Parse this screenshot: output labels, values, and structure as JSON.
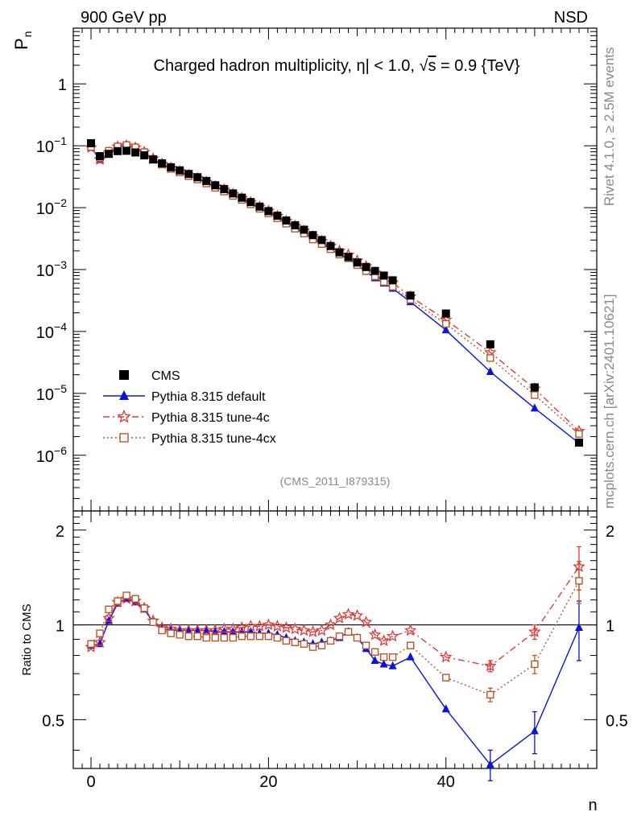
{
  "header": {
    "left": "900 GeV pp",
    "right": "NSD"
  },
  "side_labels": {
    "rivet": "Rivet 4.1.0, ≥ 2.5M events",
    "mcplots": "mcplots.cern.ch [arXiv:2401.10621]"
  },
  "analysis_tag": "(CMS_2011_I879315)",
  "chart_data": {
    "type": "scatter",
    "title": "Charged hadron multiplicity, |η| < 1.0, √s = 0.9 {TeV}",
    "title_parts": {
      "lead": "Charged hadron multiplicity, ",
      "eta": "η",
      "cut": "| < 1.0, ",
      "sqrt": "√",
      "s": "s",
      "tail": " = 0.9 {TeV}"
    },
    "ylabel": "P",
    "ylabel_sub": "n",
    "xlabel": "n",
    "ratio_ylabel": "Ratio to CMS",
    "xlim": [
      -2,
      57
    ],
    "ylim_main_log10": [
      -6.9,
      0.9
    ],
    "ylim_ratio": [
      0.35,
      2.3
    ],
    "x_ticks": [
      "0",
      "20",
      "40"
    ],
    "y_ticks_main": [
      {
        "mant": "1",
        "exp": ""
      },
      {
        "mant": "10",
        "exp": "−1"
      },
      {
        "mant": "10",
        "exp": "−2"
      },
      {
        "mant": "10",
        "exp": "−3"
      },
      {
        "mant": "10",
        "exp": "−4"
      },
      {
        "mant": "10",
        "exp": "−5"
      },
      {
        "mant": "10",
        "exp": "−6"
      }
    ],
    "y_ticks_ratio": [
      "0.5",
      "1",
      "2"
    ],
    "x": [
      0,
      1,
      2,
      3,
      4,
      5,
      6,
      7,
      8,
      9,
      10,
      11,
      12,
      13,
      14,
      15,
      16,
      17,
      18,
      19,
      20,
      21,
      22,
      23,
      24,
      25,
      26,
      27,
      28,
      29,
      30,
      31,
      32,
      33,
      34,
      36,
      40,
      45,
      50,
      55
    ],
    "series": [
      {
        "name": "CMS",
        "color": "#000000",
        "marker": "square-filled",
        "line": "none",
        "values": [
          0.11,
          0.068,
          0.074,
          0.082,
          0.083,
          0.078,
          0.07,
          0.06,
          0.052,
          0.045,
          0.04,
          0.035,
          0.031,
          0.027,
          0.023,
          0.02,
          0.017,
          0.0145,
          0.0123,
          0.0104,
          0.0088,
          0.0074,
          0.0062,
          0.0052,
          0.0044,
          0.0036,
          0.003,
          0.0024,
          0.0019,
          0.0016,
          0.0013,
          0.0011,
          0.00095,
          0.0008,
          0.00067,
          0.00038,
          0.000195,
          6.2e-05,
          1.25e-05,
          1.6e-06
        ]
      },
      {
        "name": "Pythia 8.315 default",
        "color": "#0a14d8",
        "marker": "triangle-filled",
        "line": "solid",
        "ratio": [
          0.86,
          0.87,
          1.03,
          1.17,
          1.21,
          1.18,
          1.12,
          1.02,
          0.97,
          0.96,
          0.96,
          0.96,
          0.96,
          0.96,
          0.95,
          0.95,
          0.95,
          0.95,
          0.95,
          0.94,
          0.94,
          0.93,
          0.91,
          0.89,
          0.88,
          0.87,
          0.88,
          0.89,
          0.91,
          0.95,
          0.91,
          0.84,
          0.77,
          0.75,
          0.74,
          0.79,
          0.54,
          0.36,
          0.46,
          0.98
        ],
        "ratio_err": {
          "45": 0.04,
          "50": 0.07,
          "55": 0.21
        }
      },
      {
        "name": "Pythia 8.315 tune-4c",
        "color": "#e03a3a",
        "marker": "star-open",
        "line": "dashdot",
        "ratio": [
          0.85,
          0.88,
          1.05,
          1.18,
          1.21,
          1.19,
          1.13,
          1.03,
          0.98,
          0.97,
          0.96,
          0.96,
          0.96,
          0.96,
          0.96,
          0.97,
          0.97,
          0.98,
          0.99,
          0.99,
          1.0,
          0.99,
          0.98,
          0.97,
          0.96,
          0.95,
          0.96,
          1.0,
          1.05,
          1.08,
          1.07,
          1.02,
          0.93,
          0.89,
          0.92,
          0.96,
          0.79,
          0.74,
          0.95,
          1.53
        ],
        "ratio_err": {
          "45": 0.03,
          "50": 0.05,
          "55": 0.24
        }
      },
      {
        "name": "Pythia 8.315 tune-4cx",
        "color": "#b5572a",
        "marker": "square-open",
        "line": "dotted",
        "ratio": [
          0.87,
          0.94,
          1.12,
          1.19,
          1.24,
          1.21,
          1.13,
          1.02,
          0.96,
          0.94,
          0.93,
          0.92,
          0.92,
          0.91,
          0.91,
          0.91,
          0.91,
          0.92,
          0.92,
          0.92,
          0.92,
          0.91,
          0.89,
          0.88,
          0.87,
          0.85,
          0.86,
          0.89,
          0.92,
          0.95,
          0.91,
          0.86,
          0.82,
          0.79,
          0.79,
          0.86,
          0.68,
          0.6,
          0.75,
          1.38
        ],
        "ratio_err": {
          "45": 0.03,
          "50": 0.05,
          "55": 0.21
        }
      }
    ],
    "legend": "left, lower-middle of main panel"
  }
}
